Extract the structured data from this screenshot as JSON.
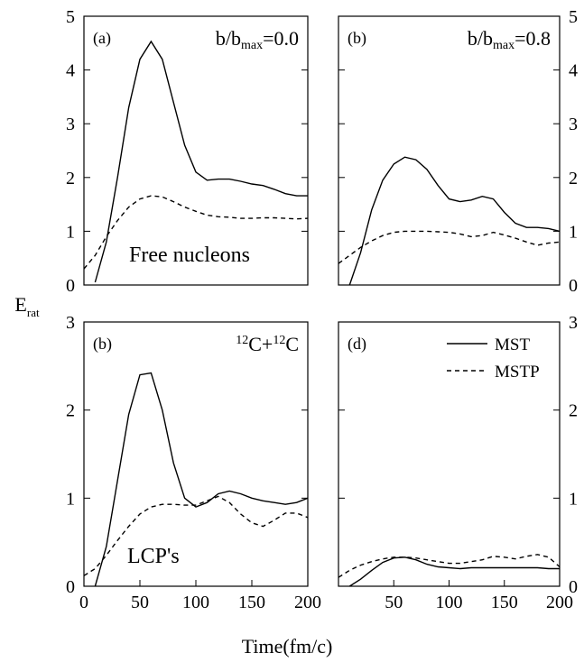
{
  "x_label": "Time(fm/c)",
  "y_label": [
    "E",
    "rat"
  ],
  "chart_data": [
    {
      "type": "line",
      "panel_label": "(a)",
      "annotation": [
        "b/b",
        "max",
        "=0.0"
      ],
      "label": "Free nucleons",
      "xlim": [
        0,
        200
      ],
      "ylim": [
        0,
        5
      ],
      "yticks": [
        0,
        1,
        2,
        3,
        4,
        5
      ],
      "x": [
        0,
        10,
        20,
        30,
        40,
        50,
        60,
        70,
        80,
        90,
        100,
        110,
        120,
        130,
        140,
        150,
        160,
        170,
        180,
        190,
        200
      ],
      "series": [
        {
          "name": "MST",
          "color": "#000000",
          "line_style": "solid",
          "values": [
            null,
            0.05,
            0.8,
            2.0,
            3.3,
            4.2,
            4.53,
            4.2,
            3.4,
            2.6,
            2.1,
            1.95,
            1.97,
            1.97,
            1.93,
            1.88,
            1.85,
            1.78,
            1.7,
            1.66,
            1.66
          ]
        },
        {
          "name": "MSTP",
          "color": "#000000",
          "line_style": "dashed",
          "values": [
            0.3,
            0.55,
            0.9,
            1.2,
            1.45,
            1.6,
            1.66,
            1.64,
            1.55,
            1.45,
            1.37,
            1.3,
            1.27,
            1.26,
            1.24,
            1.24,
            1.25,
            1.25,
            1.24,
            1.23,
            1.24
          ]
        }
      ]
    },
    {
      "type": "line",
      "panel_label": "(b)",
      "annotation": [
        "b/b",
        "max",
        "=0.8"
      ],
      "xlim": [
        0,
        200
      ],
      "ylim": [
        0,
        5
      ],
      "yticks": [
        0,
        1,
        2,
        3,
        4,
        5
      ],
      "x": [
        0,
        10,
        20,
        30,
        40,
        50,
        60,
        70,
        80,
        90,
        100,
        110,
        120,
        130,
        140,
        150,
        160,
        170,
        180,
        190,
        200
      ],
      "series": [
        {
          "name": "MST",
          "color": "#000000",
          "line_style": "solid",
          "values": [
            null,
            0.0,
            0.6,
            1.4,
            1.95,
            2.25,
            2.38,
            2.33,
            2.15,
            1.85,
            1.6,
            1.55,
            1.58,
            1.65,
            1.6,
            1.35,
            1.15,
            1.07,
            1.07,
            1.05,
            1.0
          ]
        },
        {
          "name": "MSTP",
          "color": "#000000",
          "line_style": "dashed",
          "values": [
            0.4,
            0.55,
            0.7,
            0.82,
            0.92,
            0.98,
            1.0,
            1.0,
            1.0,
            0.99,
            0.98,
            0.95,
            0.9,
            0.92,
            0.98,
            0.93,
            0.87,
            0.8,
            0.74,
            0.78,
            0.8
          ]
        }
      ]
    },
    {
      "type": "line",
      "panel_label": "(b)",
      "annotation": [
        "12",
        "C+",
        "12",
        "C"
      ],
      "label": "LCP's",
      "xlim": [
        0,
        200
      ],
      "ylim": [
        0,
        3
      ],
      "yticks": [
        0,
        1,
        2,
        3
      ],
      "xticks": [
        0,
        50,
        100,
        150,
        200
      ],
      "x": [
        0,
        10,
        20,
        30,
        40,
        50,
        60,
        70,
        80,
        90,
        100,
        110,
        120,
        130,
        140,
        150,
        160,
        170,
        180,
        190,
        200
      ],
      "series": [
        {
          "name": "MST",
          "color": "#000000",
          "line_style": "solid",
          "values": [
            null,
            0.0,
            0.45,
            1.2,
            1.95,
            2.4,
            2.42,
            2.0,
            1.4,
            1.0,
            0.9,
            0.95,
            1.05,
            1.08,
            1.05,
            1.0,
            0.97,
            0.95,
            0.93,
            0.95,
            1.0
          ]
        },
        {
          "name": "MSTP",
          "color": "#000000",
          "line_style": "dashed",
          "values": [
            0.12,
            0.2,
            0.35,
            0.52,
            0.68,
            0.82,
            0.9,
            0.93,
            0.93,
            0.92,
            0.92,
            0.97,
            1.02,
            0.95,
            0.82,
            0.72,
            0.68,
            0.75,
            0.83,
            0.83,
            0.78
          ]
        }
      ]
    },
    {
      "type": "line",
      "panel_label": "(d)",
      "legend": "upper right",
      "xlim": [
        0,
        200
      ],
      "ylim": [
        0,
        3
      ],
      "yticks": [
        0,
        1,
        2,
        3
      ],
      "xticks": [
        50,
        100,
        150,
        200
      ],
      "x": [
        0,
        10,
        20,
        30,
        40,
        50,
        60,
        70,
        80,
        90,
        100,
        110,
        120,
        130,
        140,
        150,
        160,
        170,
        180,
        190,
        200
      ],
      "series": [
        {
          "name": "MST",
          "color": "#000000",
          "line_style": "solid",
          "values": [
            null,
            0.0,
            0.08,
            0.18,
            0.27,
            0.32,
            0.33,
            0.3,
            0.25,
            0.22,
            0.21,
            0.2,
            0.21,
            0.21,
            0.21,
            0.21,
            0.21,
            0.21,
            0.21,
            0.2,
            0.2
          ]
        },
        {
          "name": "MSTP",
          "color": "#000000",
          "line_style": "dashed",
          "values": [
            0.1,
            0.18,
            0.24,
            0.28,
            0.31,
            0.33,
            0.33,
            0.32,
            0.3,
            0.28,
            0.26,
            0.26,
            0.28,
            0.3,
            0.34,
            0.33,
            0.31,
            0.34,
            0.36,
            0.33,
            0.22
          ]
        }
      ]
    }
  ]
}
